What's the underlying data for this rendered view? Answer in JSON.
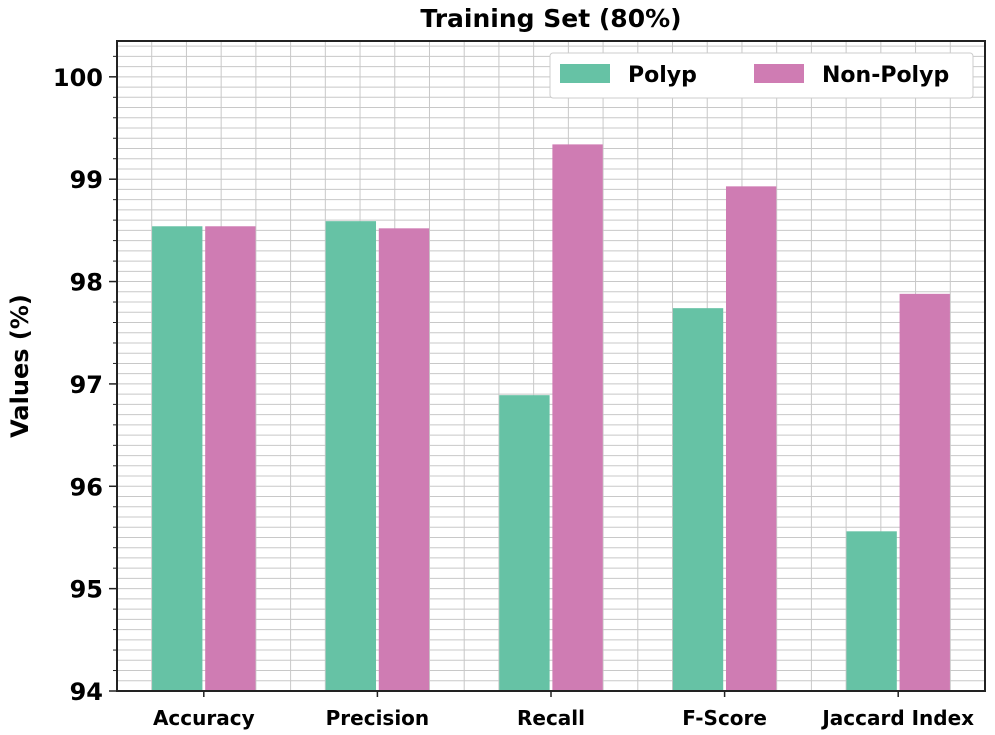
{
  "chart_data": {
    "type": "bar",
    "title": "Training Set (80%)",
    "xlabel": "",
    "ylabel": "Values (%)",
    "categories": [
      "Accuracy",
      "Precision",
      "Recall",
      "F-Score",
      "Jaccard Index"
    ],
    "series": [
      {
        "name": "Polyp",
        "color": "#66c2a5",
        "values": [
          98.54,
          98.59,
          96.89,
          97.74,
          95.56
        ]
      },
      {
        "name": "Non-Polyp",
        "color": "#cf7cb3",
        "values": [
          98.54,
          98.52,
          99.34,
          98.93,
          97.88
        ]
      }
    ],
    "ylim": [
      94,
      100.35
    ],
    "yticks": [
      94,
      95,
      96,
      97,
      98,
      99,
      100
    ],
    "grid": true,
    "legend_position": "top-right"
  }
}
